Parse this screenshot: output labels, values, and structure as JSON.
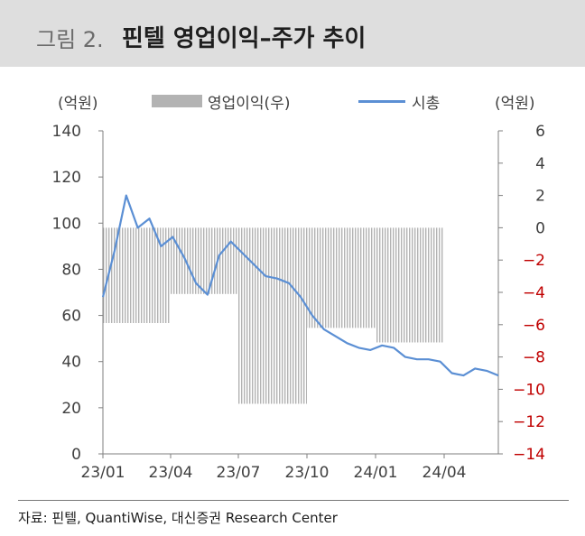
{
  "header": {
    "figure_label": "그림 2.",
    "title": "핀텔 영업이익–주가 추이"
  },
  "source_note": "자료: 핀텔, QuantiWise, 대신증권 Research Center",
  "colors": {
    "bar": "#b3b3b3",
    "line": "#5b8fd4",
    "negative_tick": "#c00000"
  },
  "chart_data": {
    "type": "bar+line",
    "left_unit": "(억원)",
    "right_unit": "(억원)",
    "x_ticks": [
      "23/01",
      "23/04",
      "23/07",
      "23/10",
      "24/01",
      "24/04"
    ],
    "left_axis": {
      "min": 0,
      "max": 140,
      "step": 20,
      "ticks": [
        "0",
        "20",
        "40",
        "60",
        "80",
        "100",
        "120",
        "140"
      ]
    },
    "right_axis": {
      "min": -14,
      "max": 6,
      "step": 2,
      "ticks": [
        "−14",
        "−12",
        "−10",
        "−8",
        "−6",
        "−4",
        "−2",
        "0",
        "2",
        "4",
        "6"
      ]
    },
    "series": [
      {
        "name": "영업이익(우)",
        "kind": "bar",
        "axis": "right",
        "quarters": [
          "23/01",
          "23/04",
          "23/07",
          "23/10",
          "24/01"
        ],
        "values": [
          -5.9,
          -4.1,
          -10.9,
          -6.2,
          -7.1
        ]
      },
      {
        "name": "시총",
        "kind": "line",
        "axis": "left",
        "x": [
          "23/01",
          "23/01.5",
          "23/02",
          "23/02.5",
          "23/03",
          "23/03.5",
          "23/04",
          "23/04.5",
          "23/05",
          "23/05.5",
          "23/06",
          "23/06.5",
          "23/07",
          "23/07.5",
          "23/08",
          "23/08.5",
          "23/09",
          "23/09.5",
          "23/10",
          "23/10.5",
          "23/11",
          "23/11.5",
          "23/12",
          "23/12.5",
          "24/01",
          "24/01.5",
          "24/02",
          "24/02.5",
          "24/03",
          "24/03.5",
          "24/04",
          "24/04.5",
          "24/05",
          "24/05.5",
          "24/06"
        ],
        "values": [
          68,
          88,
          112,
          98,
          102,
          90,
          94,
          85,
          74,
          69,
          86,
          92,
          87,
          82,
          77,
          76,
          74,
          68,
          60,
          54,
          51,
          48,
          46,
          45,
          47,
          46,
          42,
          41,
          41,
          40,
          35,
          34,
          37,
          36,
          34
        ]
      }
    ]
  }
}
